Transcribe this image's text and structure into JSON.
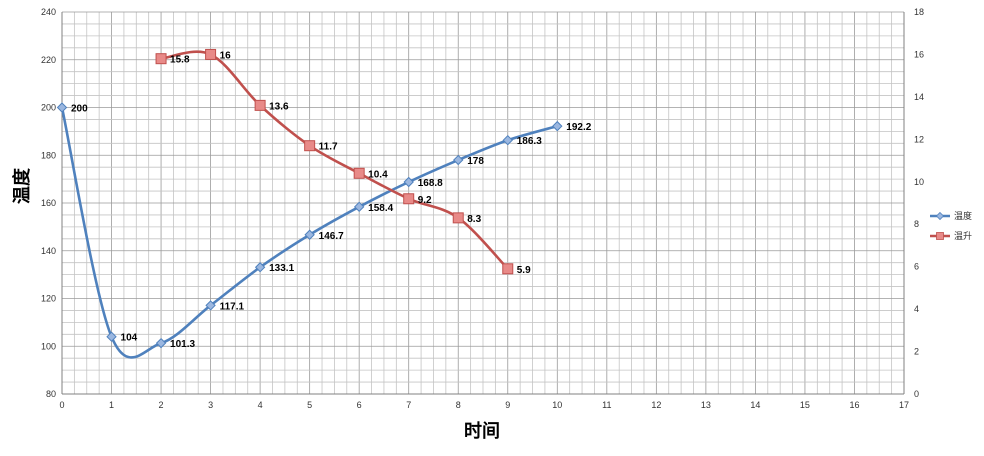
{
  "chart_data": {
    "type": "line",
    "xlabel": "时间",
    "ylabel": "温度",
    "xlim": [
      0,
      17
    ],
    "ylim": [
      80,
      240
    ],
    "y2lim": [
      0,
      18
    ],
    "x_ticks": [
      0,
      1,
      2,
      3,
      4,
      5,
      6,
      7,
      8,
      9,
      10,
      11,
      12,
      13,
      14,
      15,
      16,
      17
    ],
    "y_ticks": [
      80,
      100,
      120,
      140,
      160,
      180,
      200,
      220,
      240
    ],
    "y2_ticks": [
      0,
      2,
      4,
      6,
      8,
      10,
      12,
      14,
      16,
      18
    ],
    "grid": true,
    "legend": "right",
    "series": [
      {
        "name": "温度",
        "axis": "left",
        "color": "#4f81bd",
        "marker": "diamond",
        "x": [
          0,
          1,
          2,
          3,
          4,
          5,
          6,
          7,
          8,
          9,
          10
        ],
        "values": [
          200,
          104,
          101.3,
          117.1,
          133.1,
          146.7,
          158.4,
          168.8,
          178,
          186.3,
          192.2
        ],
        "labels": [
          "200",
          "104",
          "101.3",
          "117.1",
          "133.1",
          "146.7",
          "158.4",
          "168.8",
          "178",
          "186.3",
          "192.2"
        ]
      },
      {
        "name": "温升",
        "axis": "right",
        "color": "#c0504d",
        "marker": "square",
        "x": [
          2,
          3,
          4,
          5,
          6,
          7,
          8,
          9
        ],
        "values": [
          15.8,
          16,
          13.6,
          11.7,
          10.4,
          9.2,
          8.3,
          5.9
        ],
        "labels": [
          "15.8",
          "16",
          "13.6",
          "11.7",
          "10.4",
          "9.2",
          "8.3",
          "5.9"
        ]
      }
    ]
  }
}
